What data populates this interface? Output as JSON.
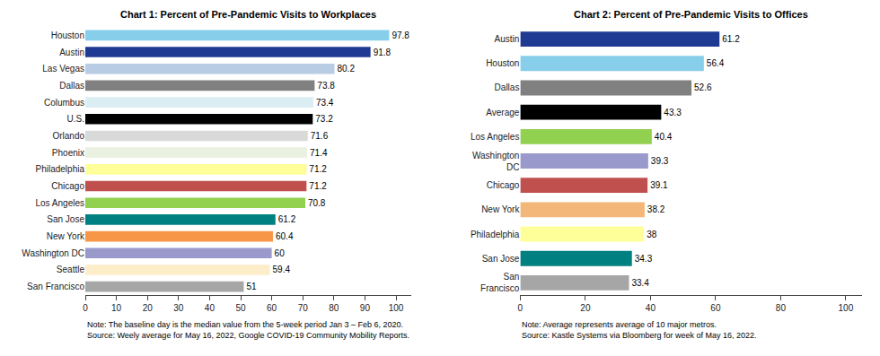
{
  "chart_data": [
    {
      "type": "bar",
      "orientation": "horizontal",
      "title": "Chart 1: Percent of Pre-Pandemic Visits to Workplaces",
      "categories": [
        "Houston",
        "Austin",
        "Las Vegas",
        "Dallas",
        "Columbus",
        "U.S.",
        "Orlando",
        "Phoenix",
        "Philadelphia",
        "Chicago",
        "Los Angeles",
        "San Jose",
        "New York",
        "Washington DC",
        "Seattle",
        "San Francisco"
      ],
      "values": [
        97.8,
        91.8,
        80.2,
        73.8,
        73.4,
        73.2,
        71.6,
        71.4,
        71.2,
        71.2,
        70.8,
        61.2,
        60.4,
        60.0,
        59.4,
        51.0
      ],
      "colors": [
        "#87CEEB",
        "#1F3A93",
        "#B8CCE4",
        "#808080",
        "#DAEEF3",
        "#000000",
        "#D9D9D9",
        "#EBF1E0",
        "#FFFF99",
        "#C0504D",
        "#92D050",
        "#008080",
        "#F79646",
        "#9999CC",
        "#FDEDC8",
        "#A6A6A6"
      ],
      "xlim": [
        0,
        105
      ],
      "xticks": [
        0,
        10,
        20,
        30,
        40,
        50,
        60,
        70,
        80,
        90,
        100
      ],
      "data_labels": true,
      "grid": false,
      "annotations": [
        "Note: The baseline day is the median value from the 5-week period Jan 3 – Feb 6, 2020.",
        "Source: Weely average for May 16, 2022, Google COVID-19 Community Mobility Reports."
      ]
    },
    {
      "type": "bar",
      "orientation": "horizontal",
      "title": "Chart 2: Percent of Pre-Pandemic Visits to Offices",
      "categories": [
        "Austin",
        "Houston",
        "Dallas",
        "Average",
        "Los Angeles",
        "Washington\nDC",
        "Chicago",
        "New York",
        "Philadelphia",
        "San Jose",
        "San\nFrancisco"
      ],
      "values": [
        61.2,
        56.4,
        52.6,
        43.3,
        40.4,
        39.3,
        39.1,
        38.2,
        38.0,
        34.3,
        33.4
      ],
      "colors": [
        "#1F3A93",
        "#87CEEB",
        "#808080",
        "#000000",
        "#92D050",
        "#9999CC",
        "#C0504D",
        "#F4B77A",
        "#FFFF99",
        "#008080",
        "#A6A6A6"
      ],
      "xlim": [
        0,
        105
      ],
      "xticks": [
        0,
        20,
        40,
        60,
        80,
        100
      ],
      "data_labels": true,
      "grid": false,
      "annotations": [
        "Note: Average represents average of 10 major metros.",
        "Source: Kastle Systems via Bloomberg for week of May 16, 2022."
      ]
    }
  ]
}
